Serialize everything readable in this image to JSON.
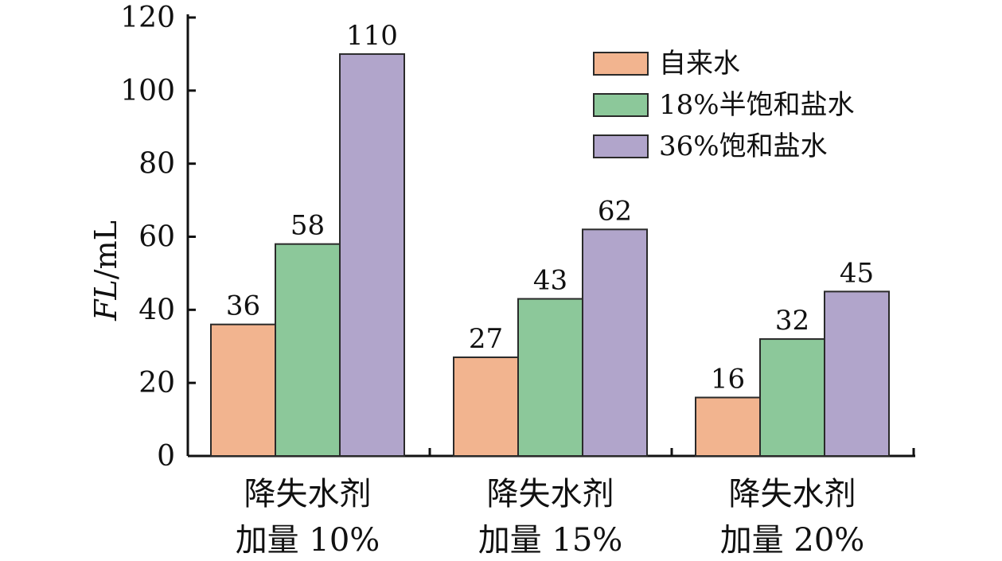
{
  "chart_data": {
    "type": "bar",
    "title": "",
    "xlabel": "",
    "ylabel": "FL/mL",
    "ylabel_italic_part": "FL",
    "ylabel_unit_part": "/mL",
    "ylim": [
      0,
      120
    ],
    "yticks": [
      0,
      20,
      40,
      60,
      80,
      100,
      120
    ],
    "grid": false,
    "legend_position": "top-right",
    "categories": [
      [
        "降失水剂",
        "加量 10%"
      ],
      [
        "降失水剂",
        "加量 15%"
      ],
      [
        "降失水剂",
        "加量 20%"
      ]
    ],
    "series": [
      {
        "name": "自来水",
        "color": "#f2b48f",
        "values": [
          36,
          27,
          16
        ]
      },
      {
        "name": "18%半饱和盐水",
        "color": "#8cc89a",
        "values": [
          58,
          43,
          32
        ]
      },
      {
        "name": "36%饱和盐水",
        "color": "#b1a5cb",
        "values": [
          110,
          62,
          45
        ]
      }
    ]
  }
}
